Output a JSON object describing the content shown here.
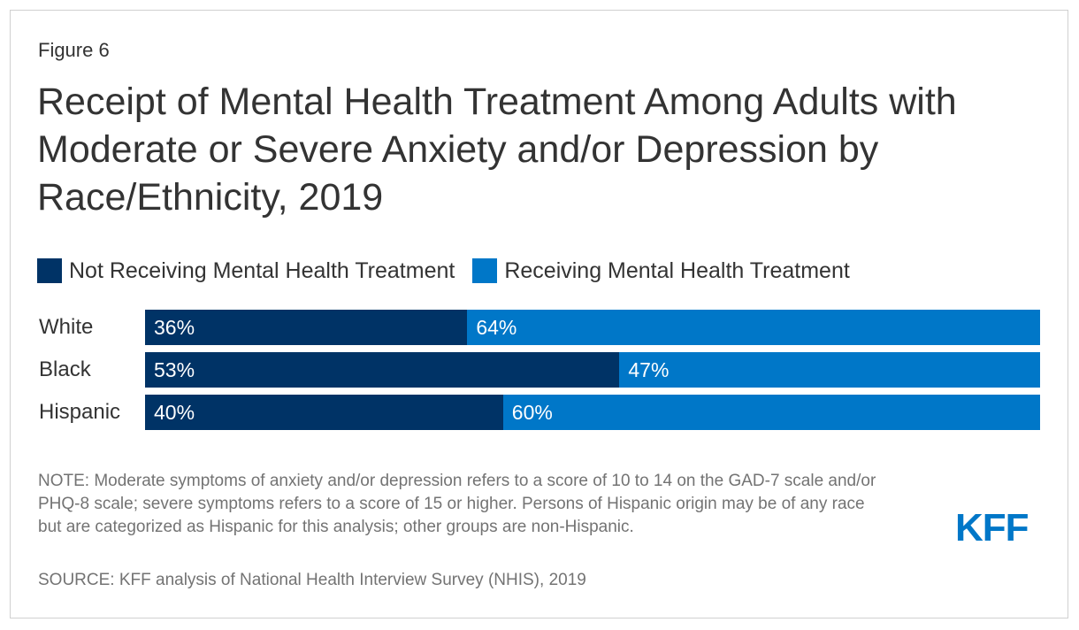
{
  "figure_label": "Figure 6",
  "chart_data": {
    "type": "bar",
    "orientation": "horizontal",
    "stacked": true,
    "title": "Receipt of Mental Health Treatment Among Adults with Moderate or Severe Anxiety and/or Depression by Race/Ethnicity, 2019",
    "categories": [
      "White",
      "Black",
      "Hispanic"
    ],
    "series": [
      {
        "name": "Not Receiving Mental Health Treatment",
        "color": "#003366",
        "values": [
          36,
          53,
          40
        ],
        "labels": [
          "36%",
          "53%",
          "40%"
        ]
      },
      {
        "name": "Receiving Mental Health Treatment",
        "color": "#0077c8",
        "values": [
          64,
          47,
          60
        ],
        "labels": [
          "64%",
          "47%",
          "60%"
        ]
      }
    ],
    "xlim": [
      0,
      100
    ],
    "legend_position": "top-left",
    "grid": false
  },
  "note": "NOTE: Moderate symptoms of anxiety and/or depression refers to a score of 10 to 14 on the GAD-7 scale and/or PHQ-8 scale; severe symptoms refers to a score of 15 or higher. Persons of Hispanic origin may be of any race but are categorized as Hispanic for this analysis; other groups are non-Hispanic.",
  "source": "SOURCE: KFF analysis of National Health Interview Survey (NHIS), 2019",
  "logo_text": "KFF"
}
